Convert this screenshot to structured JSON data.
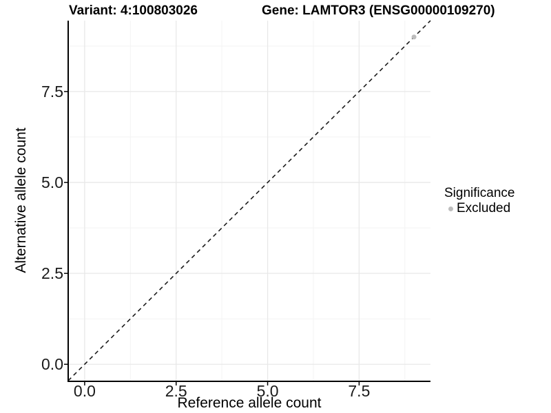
{
  "figure": {
    "titles": {
      "left": "Variant: 4:100803026",
      "right": "Gene: LAMTOR3 (ENSG00000109270)"
    }
  },
  "chart_data": {
    "type": "scatter",
    "title": "Variant: 4:100803026  |  Gene: LAMTOR3 (ENSG00000109270)",
    "xlabel": "Reference allele count",
    "ylabel": "Alternative allele count",
    "xlim": [
      -0.45,
      9.45
    ],
    "ylim": [
      -0.45,
      9.45
    ],
    "x_tick_values": [
      0,
      2.5,
      5,
      7.5
    ],
    "x_tick_labels": [
      "0.0",
      "2.5",
      "5.0",
      "7.5"
    ],
    "y_tick_values": [
      0,
      2.5,
      5,
      7.5
    ],
    "y_tick_labels": [
      "0.0",
      "2.5",
      "5.0",
      "7.5"
    ],
    "minor_tick_values": [
      1.25,
      3.75,
      6.25,
      8.75
    ],
    "grid": "major+minor",
    "identity_line": {
      "style": "dashed",
      "slope": 1,
      "intercept": 0,
      "color": "#1a1a1a"
    },
    "series": [
      {
        "name": "Excluded",
        "color": "#bdbdbd",
        "point_radius": 3.5,
        "points": [
          {
            "x": 9,
            "y": 9
          }
        ]
      }
    ],
    "legend": {
      "title": "Significance",
      "position": "right",
      "entries": [
        {
          "label": "Excluded",
          "color": "#bdbdbd"
        }
      ]
    },
    "colors": {
      "grid_major": "#e8e8e8",
      "grid_minor": "#f3f3f3",
      "axis_line": "#000000",
      "tick_mark": "#000000",
      "text": "#000000",
      "background": "#ffffff"
    }
  }
}
